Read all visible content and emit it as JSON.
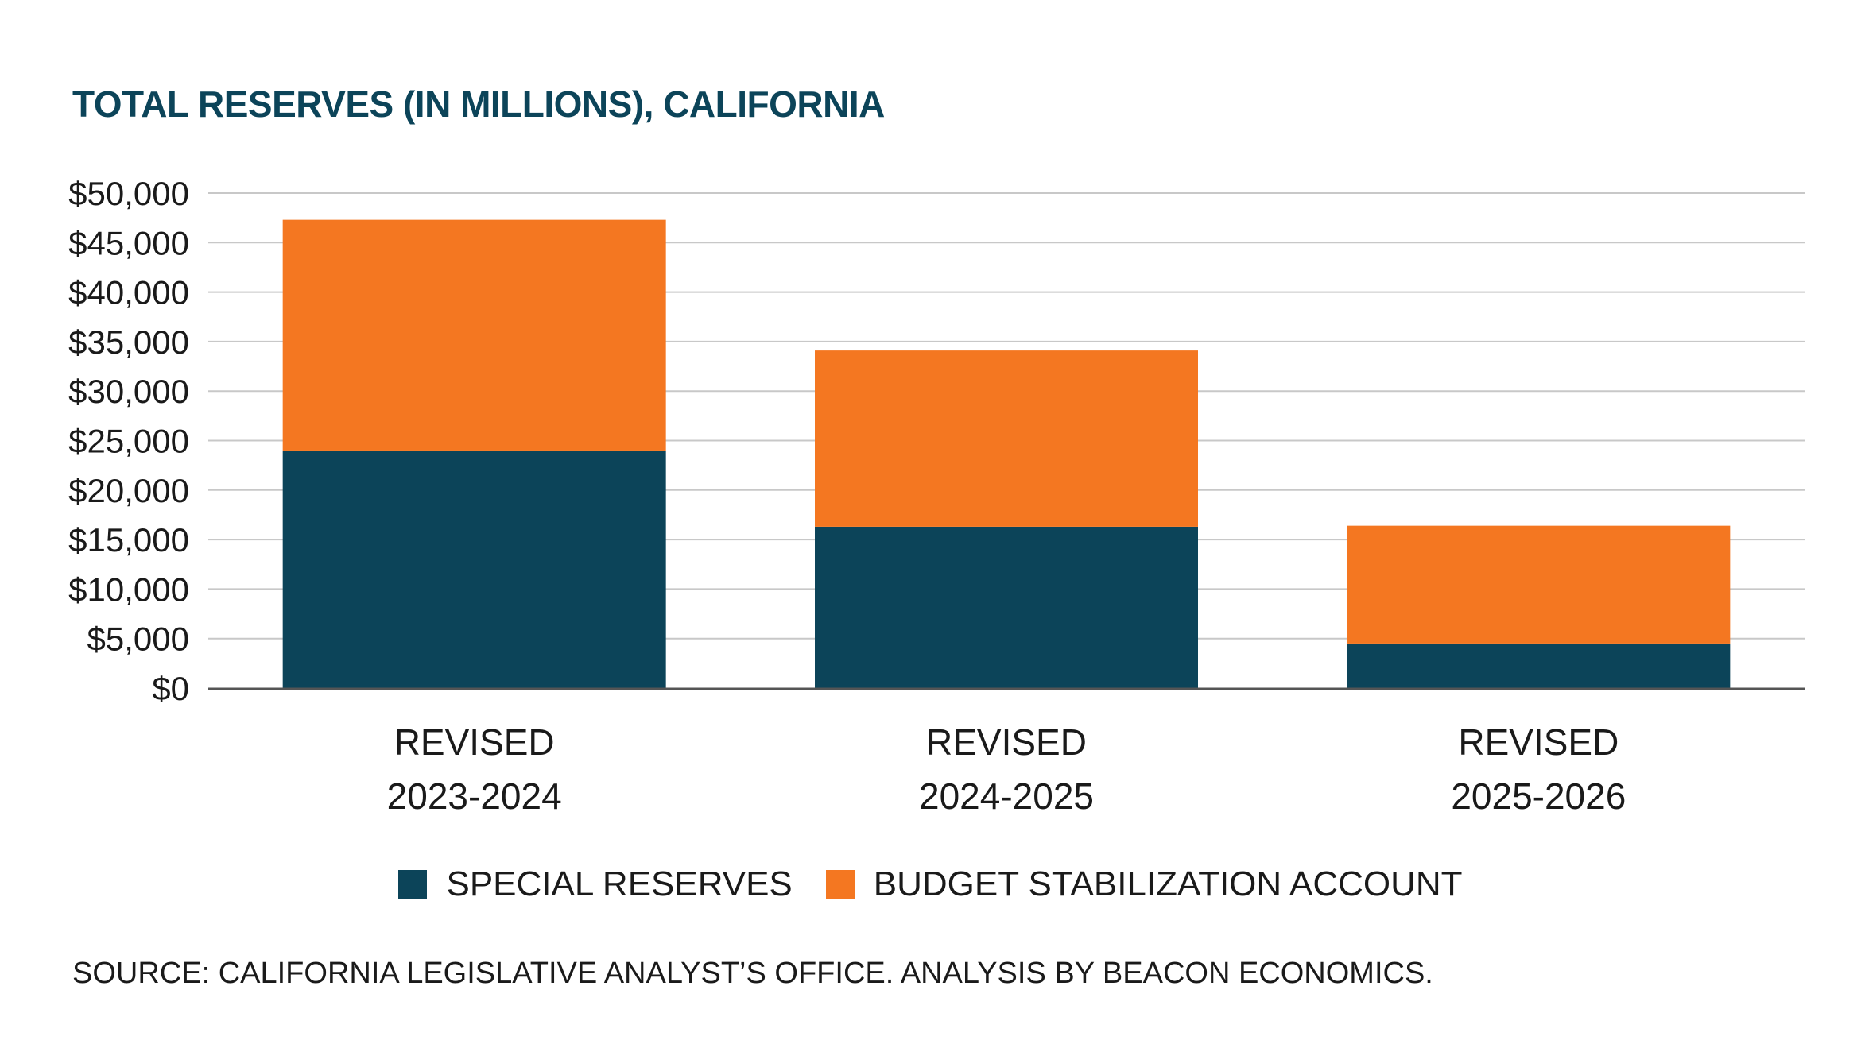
{
  "chart_data": {
    "type": "bar",
    "stacked": true,
    "title": "TOTAL RESERVES (IN MILLIONS), CALIFORNIA",
    "xlabel": "",
    "ylabel": "",
    "categories": [
      [
        "REVISED",
        "2023-2024"
      ],
      [
        "REVISED",
        "2024-2025"
      ],
      [
        "REVISED",
        "2025-2026"
      ]
    ],
    "series": [
      {
        "name": "SPECIAL RESERVES",
        "color": "#0c4459",
        "values": [
          24000,
          16300,
          4500
        ]
      },
      {
        "name": "BUDGET STABILIZATION ACCOUNT",
        "color": "#f47721",
        "values": [
          23300,
          17800,
          11900
        ]
      }
    ],
    "ylim": [
      0,
      50000
    ],
    "yticks": [
      "$0",
      "$5,000",
      "$10,000",
      "$15,000",
      "$20,000",
      "$25,000",
      "$30,000",
      "$35,000",
      "$40,000",
      "$45,000",
      "$50,000"
    ],
    "grid": true,
    "legend_position": "bottom"
  },
  "source_note": "SOURCE: CALIFORNIA LEGISLATIVE ANALYST’S OFFICE. ANALYSIS BY BEACON ECONOMICS."
}
